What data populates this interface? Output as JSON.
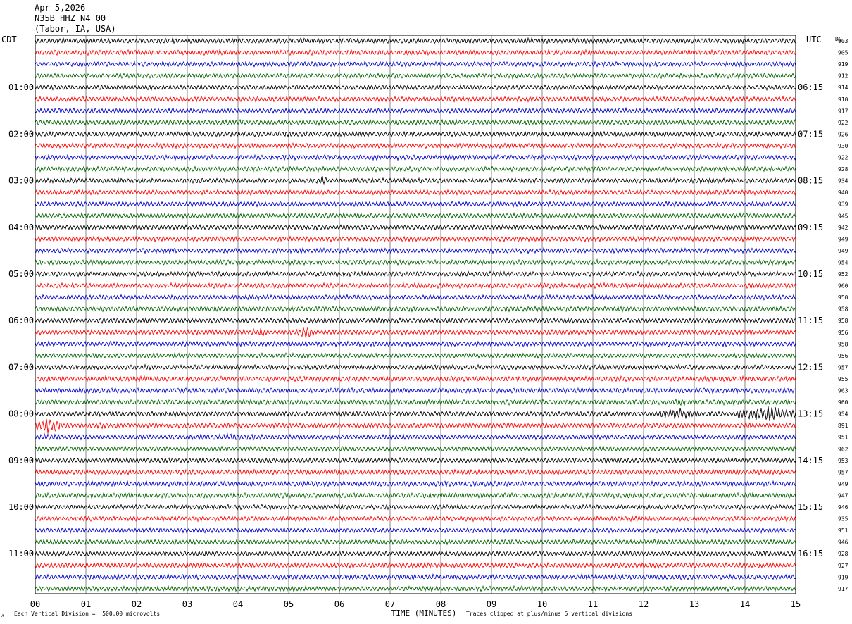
{
  "header": {
    "date": "Apr 5,2026",
    "station": "N35B HHZ N4 00",
    "location": "(Tabor, IA, USA)"
  },
  "chart_data": {
    "type": "line",
    "title": "N35B HHZ N4 00",
    "left_axis_label": "CDT",
    "right_axis_label": "UTC",
    "dc_label": "DC",
    "xlabel": "TIME (MINUTES)",
    "x_ticks": [
      "00",
      "01",
      "02",
      "03",
      "04",
      "05",
      "06",
      "07",
      "08",
      "09",
      "10",
      "11",
      "12",
      "13",
      "14",
      "15"
    ],
    "xlim": [
      0,
      15
    ],
    "traces_per_hour": 4,
    "trace_count": 48,
    "trace_colors": [
      "#000000",
      "#ff0000",
      "#0000cc",
      "#006400"
    ],
    "left_hour_labels": [
      {
        "trace": 4,
        "label": "01:00"
      },
      {
        "trace": 8,
        "label": "02:00"
      },
      {
        "trace": 12,
        "label": "03:00"
      },
      {
        "trace": 16,
        "label": "04:00"
      },
      {
        "trace": 20,
        "label": "05:00"
      },
      {
        "trace": 24,
        "label": "06:00"
      },
      {
        "trace": 28,
        "label": "07:00"
      },
      {
        "trace": 32,
        "label": "08:00"
      },
      {
        "trace": 36,
        "label": "09:00"
      },
      {
        "trace": 40,
        "label": "10:00"
      },
      {
        "trace": 44,
        "label": "11:00"
      }
    ],
    "right_hour_labels": [
      {
        "trace": 4,
        "label": "06:15"
      },
      {
        "trace": 8,
        "label": "07:15"
      },
      {
        "trace": 12,
        "label": "08:15"
      },
      {
        "trace": 16,
        "label": "09:15"
      },
      {
        "trace": 20,
        "label": "10:15"
      },
      {
        "trace": 24,
        "label": "11:15"
      },
      {
        "trace": 28,
        "label": "12:15"
      },
      {
        "trace": 32,
        "label": "13:15"
      },
      {
        "trace": 36,
        "label": "14:15"
      },
      {
        "trace": 40,
        "label": "15:15"
      },
      {
        "trace": 44,
        "label": "16:15"
      }
    ],
    "dc_offsets": [
      "903",
      "905",
      "919",
      "912",
      "914",
      "910",
      "917",
      "922",
      "926",
      "930",
      "922",
      "928",
      "934",
      "940",
      "939",
      "945",
      "942",
      "949",
      "949",
      "954",
      "952",
      "960",
      "950",
      "958",
      "958",
      "956",
      "958",
      "956",
      "957",
      "955",
      "963",
      "960",
      "954",
      "891",
      "951",
      "962",
      "953",
      "957",
      "949",
      "947",
      "946",
      "935",
      "951",
      "946",
      "928",
      "927",
      "919",
      "917"
    ],
    "events": [
      {
        "trace": 0,
        "start_min": 8.6,
        "end_min": 8.9,
        "amp": 2.0
      },
      {
        "trace": 4,
        "start_min": 5.0,
        "end_min": 5.3,
        "amp": 1.6
      },
      {
        "trace": 12,
        "start_min": 5.55,
        "end_min": 5.75,
        "amp": 4.5
      },
      {
        "trace": 17,
        "start_min": 8.5,
        "end_min": 8.7,
        "amp": 2.0
      },
      {
        "trace": 25,
        "start_min": 4.2,
        "end_min": 4.6,
        "amp": 4.5
      },
      {
        "trace": 25,
        "start_min": 5.15,
        "end_min": 5.5,
        "amp": 6.5
      },
      {
        "trace": 31,
        "start_min": 12.5,
        "end_min": 13.0,
        "amp": 3.5
      },
      {
        "trace": 32,
        "start_min": 8.2,
        "end_min": 9.0,
        "amp": 2.0
      },
      {
        "trace": 32,
        "start_min": 12.3,
        "end_min": 13.1,
        "amp": 6.0
      },
      {
        "trace": 32,
        "start_min": 13.8,
        "end_min": 15.0,
        "amp": 8.0
      },
      {
        "trace": 33,
        "start_min": 0.0,
        "end_min": 0.5,
        "amp": 9.0
      },
      {
        "trace": 33,
        "start_min": 0.5,
        "end_min": 2.0,
        "amp": 3.0
      },
      {
        "trace": 33,
        "start_min": 9.1,
        "end_min": 9.5,
        "amp": 3.0
      },
      {
        "trace": 33,
        "start_min": 11.4,
        "end_min": 11.9,
        "amp": 3.0
      },
      {
        "trace": 34,
        "start_min": 0.0,
        "end_min": 0.5,
        "amp": 4.0
      },
      {
        "trace": 34,
        "start_min": 2.6,
        "end_min": 5.2,
        "amp": 3.5
      },
      {
        "trace": 34,
        "start_min": 5.2,
        "end_min": 6.0,
        "amp": 2.0
      },
      {
        "trace": 39,
        "start_min": 11.0,
        "end_min": 12.5,
        "amp": 2.0
      }
    ]
  },
  "footer": {
    "scale_note": "Each Vertical Division =  500.00 microvolts",
    "clip_note": "Traces clipped at plus/minus 5 vertical divisions",
    "corner_mark": "ᴧ"
  }
}
